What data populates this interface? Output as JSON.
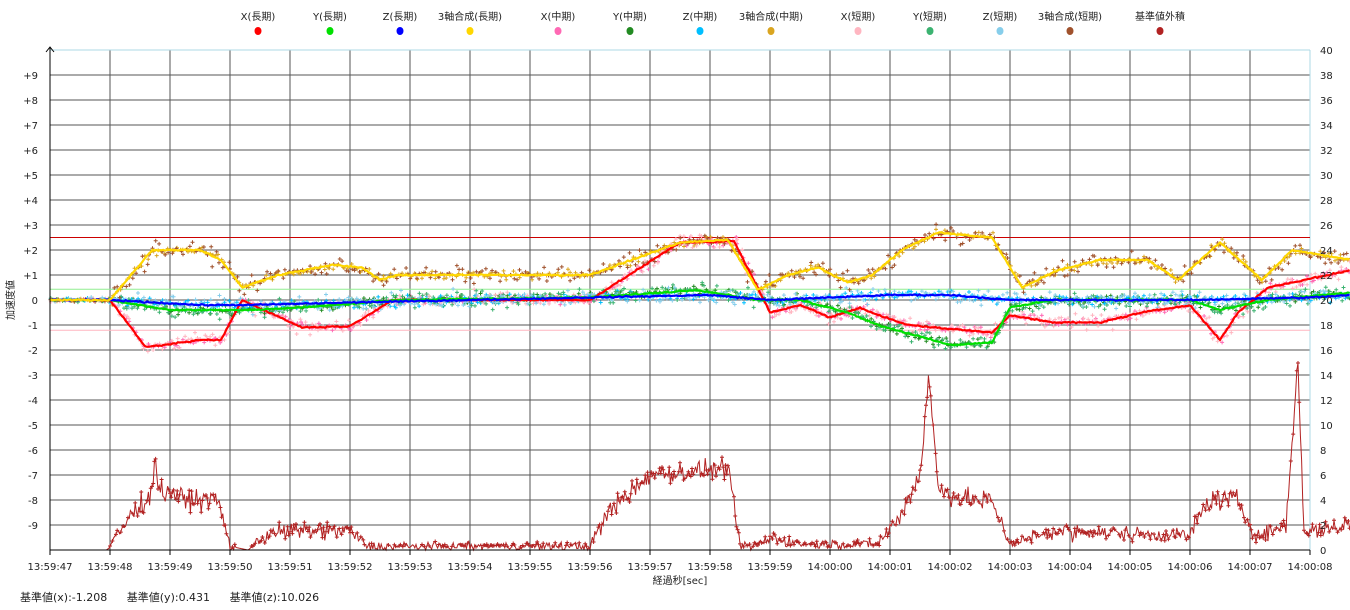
{
  "chart_data": {
    "type": "line+scatter",
    "xlabel": "経過秒[sec]",
    "ylabel": "加速度値",
    "x_ticks": [
      "13:59:47",
      "13:59:48",
      "13:59:49",
      "13:59:50",
      "13:59:51",
      "13:59:52",
      "13:59:53",
      "13:59:54",
      "13:59:55",
      "13:59:56",
      "13:59:57",
      "13:59:58",
      "13:59:59",
      "14:00:00",
      "14:00:01",
      "14:00:02",
      "14:00:03",
      "14:00:04",
      "14:00:05",
      "14:00:06",
      "14:00:07",
      "14:00:08"
    ],
    "xlim_sec": [
      0,
      21
    ],
    "ylim_left": [
      -10,
      10
    ],
    "y_ticks_left": [
      "+9",
      "+8",
      "+7",
      "+6",
      "+5",
      "+4",
      "+3",
      "+2",
      "+1",
      "0",
      "-1",
      "-2",
      "-3",
      "-4",
      "-5",
      "-6",
      "-7",
      "-8",
      "-9"
    ],
    "ylim_right": [
      0,
      40
    ],
    "y_ticks_right": [
      "40",
      "38",
      "36",
      "34",
      "32",
      "30",
      "28",
      "26",
      "24",
      "22",
      "20",
      "18",
      "16",
      "14",
      "12",
      "10",
      "8",
      "6",
      "4",
      "2",
      "0"
    ],
    "thresholds": [
      {
        "value": 2.5,
        "color": "#cc0000"
      },
      {
        "value": 0.431,
        "color": "#90ee90"
      },
      {
        "value": -1.208,
        "color": "#ffb6c1"
      }
    ],
    "series": [
      {
        "name": "X(長期)",
        "color": "#ff0000",
        "kind": "line",
        "points": [
          [
            0,
            0
          ],
          [
            1,
            0
          ],
          [
            1.6,
            -1.9
          ],
          [
            2.5,
            -1.6
          ],
          [
            2.85,
            -1.6
          ],
          [
            3.2,
            0
          ],
          [
            4.2,
            -1.1
          ],
          [
            5,
            -1.05
          ],
          [
            5.7,
            0
          ],
          [
            9,
            0
          ],
          [
            10.5,
            2.3
          ],
          [
            11.4,
            2.35
          ],
          [
            12,
            -0.5
          ],
          [
            12.5,
            -0.2
          ],
          [
            13,
            -0.7
          ],
          [
            13.5,
            -0.3
          ],
          [
            13.8,
            -0.6
          ],
          [
            14.3,
            -1.0
          ],
          [
            15.2,
            -1.2
          ],
          [
            15.7,
            -1.3
          ],
          [
            16,
            -0.6
          ],
          [
            16.7,
            -0.9
          ],
          [
            17.5,
            -0.9
          ],
          [
            18.2,
            -0.5
          ],
          [
            19,
            -0.2
          ],
          [
            19.5,
            -1.6
          ],
          [
            19.8,
            -0.5
          ],
          [
            20.3,
            0.5
          ],
          [
            21.7,
            1.2
          ]
        ]
      },
      {
        "name": "Y(長期)",
        "color": "#00e000",
        "kind": "line",
        "points": [
          [
            0,
            0
          ],
          [
            1,
            0
          ],
          [
            2,
            -0.4
          ],
          [
            3.3,
            -0.4
          ],
          [
            4.2,
            -0.3
          ],
          [
            5.8,
            0
          ],
          [
            9,
            0.1
          ],
          [
            10.8,
            0.4
          ],
          [
            11.8,
            0
          ],
          [
            12.5,
            0
          ],
          [
            13.3,
            -0.5
          ],
          [
            13.8,
            -1.0
          ],
          [
            15,
            -1.8
          ],
          [
            15.7,
            -1.7
          ],
          [
            16,
            -0.3
          ],
          [
            16.7,
            0
          ],
          [
            19,
            0
          ],
          [
            19.5,
            -0.4
          ],
          [
            20.3,
            0
          ],
          [
            21.7,
            0.3
          ]
        ]
      },
      {
        "name": "Z(長期)",
        "color": "#0000ff",
        "kind": "line",
        "points": [
          [
            0,
            0
          ],
          [
            1,
            0
          ],
          [
            2.5,
            -0.2
          ],
          [
            3.3,
            -0.2
          ],
          [
            5,
            -0.1
          ],
          [
            9,
            0.1
          ],
          [
            11,
            0.2
          ],
          [
            12,
            0
          ],
          [
            14,
            0.2
          ],
          [
            15,
            0.2
          ],
          [
            16,
            0
          ],
          [
            19,
            0
          ],
          [
            21,
            0.1
          ],
          [
            21.7,
            0.2
          ]
        ]
      },
      {
        "name": "3軸合成(長期)",
        "color": "#ffd700",
        "kind": "line",
        "points": [
          [
            0,
            0
          ],
          [
            1,
            0
          ],
          [
            1.7,
            2.0
          ],
          [
            2.5,
            2.0
          ],
          [
            2.85,
            1.6
          ],
          [
            3.2,
            0.5
          ],
          [
            3.8,
            1.0
          ],
          [
            4.7,
            1.4
          ],
          [
            5.2,
            1.3
          ],
          [
            5.5,
            0.8
          ],
          [
            5.8,
            1.0
          ],
          [
            9,
            1.0
          ],
          [
            10.5,
            2.3
          ],
          [
            11.3,
            2.4
          ],
          [
            11.8,
            0.4
          ],
          [
            12.3,
            1.0
          ],
          [
            12.8,
            1.3
          ],
          [
            13.3,
            0.7
          ],
          [
            13.7,
            1.0
          ],
          [
            14.2,
            2.0
          ],
          [
            14.8,
            2.7
          ],
          [
            15.7,
            2.5
          ],
          [
            16.2,
            0.5
          ],
          [
            16.8,
            1.2
          ],
          [
            17.5,
            1.6
          ],
          [
            18.3,
            1.6
          ],
          [
            18.8,
            0.8
          ],
          [
            19.5,
            2.3
          ],
          [
            20.2,
            0.8
          ],
          [
            20.7,
            2.0
          ],
          [
            21.7,
            1.6
          ]
        ]
      },
      {
        "name": "X(中期)",
        "color": "#ff69b4",
        "kind": "scatter",
        "follows": 0,
        "noise": 0.25
      },
      {
        "name": "Y(中期)",
        "color": "#228b22",
        "kind": "scatter",
        "follows": 1,
        "noise": 0.3
      },
      {
        "name": "Z(中期)",
        "color": "#00bfff",
        "kind": "scatter",
        "follows": 2,
        "noise": 0.3
      },
      {
        "name": "3軸合成(中期)",
        "color": "#daa520",
        "kind": "scatter",
        "follows": 3,
        "noise": 0.25
      },
      {
        "name": "X(短期)",
        "color": "#ffb6c1",
        "kind": "scatter",
        "follows": 0,
        "noise": 0.45
      },
      {
        "name": "Y(短期)",
        "color": "#3cb371",
        "kind": "scatter",
        "follows": 1,
        "noise": 0.5
      },
      {
        "name": "Z(短期)",
        "color": "#87ceeb",
        "kind": "scatter",
        "follows": 2,
        "noise": 0.5
      },
      {
        "name": "3軸合成(短期)",
        "color": "#a0522d",
        "kind": "scatter",
        "follows": 3,
        "noise": 0.5
      },
      {
        "name": "基準値外積",
        "color": "#b22222",
        "kind": "line-right",
        "points": [
          [
            0,
            0
          ],
          [
            0.95,
            0
          ],
          [
            1.3,
            2.5
          ],
          [
            1.7,
            4.5
          ],
          [
            1.75,
            8
          ],
          [
            1.8,
            5
          ],
          [
            2.3,
            4
          ],
          [
            2.8,
            4
          ],
          [
            3,
            0.3
          ],
          [
            3.3,
            0
          ],
          [
            3.7,
            1.5
          ],
          [
            5,
            1.5
          ],
          [
            5.3,
            0.3
          ],
          [
            9,
            0.3
          ],
          [
            9.3,
            3
          ],
          [
            10,
            6
          ],
          [
            11.3,
            6.5
          ],
          [
            11.5,
            0.3
          ],
          [
            11.8,
            0.3
          ],
          [
            12,
            1
          ],
          [
            12.5,
            0.5
          ],
          [
            13.8,
            0.5
          ],
          [
            14.2,
            3
          ],
          [
            14.5,
            6
          ],
          [
            14.65,
            14
          ],
          [
            14.8,
            5
          ],
          [
            15.2,
            4
          ],
          [
            15.7,
            4
          ],
          [
            16,
            0.5
          ],
          [
            16.7,
            1.5
          ],
          [
            19,
            1.2
          ],
          [
            19.3,
            4
          ],
          [
            19.8,
            4
          ],
          [
            20.1,
            1
          ],
          [
            20.6,
            2
          ],
          [
            20.8,
            15
          ],
          [
            20.9,
            1.5
          ],
          [
            21.7,
            2
          ]
        ],
        "noise": 1.2
      }
    ]
  },
  "footer": {
    "ref_x": "基準値(x):-1.208",
    "ref_y": "基準値(y):0.431",
    "ref_z": "基準値(z):10.026"
  }
}
